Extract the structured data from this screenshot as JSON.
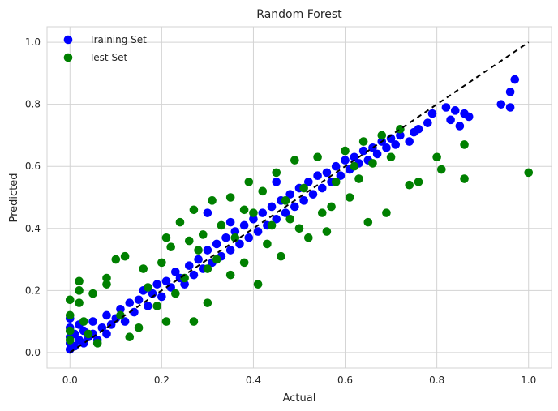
{
  "chart_data": {
    "type": "scatter",
    "title": "Random Forest",
    "xlabel": "Actual",
    "ylabel": "Predicted",
    "xlim": [
      -0.05,
      1.05
    ],
    "ylim": [
      -0.05,
      1.05
    ],
    "xticks": [
      0.0,
      0.2,
      0.4,
      0.6,
      0.8,
      1.0
    ],
    "yticks": [
      0.0,
      0.2,
      0.4,
      0.6,
      0.8,
      1.0
    ],
    "xtick_labels": [
      "0.0",
      "0.2",
      "0.4",
      "0.6",
      "0.8",
      "1.0"
    ],
    "ytick_labels": [
      "0.0",
      "0.2",
      "0.4",
      "0.6",
      "0.8",
      "1.0"
    ],
    "grid": true,
    "legend_position": "top-left",
    "reference_line": {
      "x": [
        0,
        1
      ],
      "y": [
        0,
        1
      ],
      "style": "dashed",
      "color": "#000000"
    },
    "series": [
      {
        "name": "Training Set",
        "color": "#0000ff",
        "points": [
          [
            0.0,
            0.01
          ],
          [
            0.0,
            0.03
          ],
          [
            0.0,
            0.05
          ],
          [
            0.0,
            0.08
          ],
          [
            0.0,
            0.11
          ],
          [
            0.01,
            0.02
          ],
          [
            0.01,
            0.06
          ],
          [
            0.02,
            0.04
          ],
          [
            0.02,
            0.09
          ],
          [
            0.03,
            0.03
          ],
          [
            0.03,
            0.07
          ],
          [
            0.04,
            0.05
          ],
          [
            0.05,
            0.06
          ],
          [
            0.05,
            0.1
          ],
          [
            0.06,
            0.04
          ],
          [
            0.07,
            0.08
          ],
          [
            0.08,
            0.06
          ],
          [
            0.08,
            0.12
          ],
          [
            0.09,
            0.09
          ],
          [
            0.1,
            0.11
          ],
          [
            0.11,
            0.14
          ],
          [
            0.12,
            0.1
          ],
          [
            0.13,
            0.16
          ],
          [
            0.14,
            0.13
          ],
          [
            0.15,
            0.17
          ],
          [
            0.16,
            0.2
          ],
          [
            0.17,
            0.15
          ],
          [
            0.18,
            0.19
          ],
          [
            0.19,
            0.22
          ],
          [
            0.2,
            0.18
          ],
          [
            0.21,
            0.23
          ],
          [
            0.22,
            0.21
          ],
          [
            0.23,
            0.26
          ],
          [
            0.24,
            0.24
          ],
          [
            0.25,
            0.22
          ],
          [
            0.26,
            0.28
          ],
          [
            0.27,
            0.25
          ],
          [
            0.28,
            0.3
          ],
          [
            0.29,
            0.27
          ],
          [
            0.3,
            0.33
          ],
          [
            0.31,
            0.29
          ],
          [
            0.32,
            0.35
          ],
          [
            0.33,
            0.31
          ],
          [
            0.34,
            0.37
          ],
          [
            0.35,
            0.33
          ],
          [
            0.36,
            0.39
          ],
          [
            0.37,
            0.35
          ],
          [
            0.38,
            0.41
          ],
          [
            0.39,
            0.37
          ],
          [
            0.4,
            0.43
          ],
          [
            0.41,
            0.39
          ],
          [
            0.42,
            0.45
          ],
          [
            0.43,
            0.41
          ],
          [
            0.44,
            0.47
          ],
          [
            0.45,
            0.43
          ],
          [
            0.46,
            0.49
          ],
          [
            0.47,
            0.45
          ],
          [
            0.48,
            0.51
          ],
          [
            0.49,
            0.47
          ],
          [
            0.5,
            0.53
          ],
          [
            0.51,
            0.49
          ],
          [
            0.52,
            0.55
          ],
          [
            0.53,
            0.51
          ],
          [
            0.54,
            0.57
          ],
          [
            0.55,
            0.53
          ],
          [
            0.56,
            0.58
          ],
          [
            0.57,
            0.55
          ],
          [
            0.58,
            0.6
          ],
          [
            0.59,
            0.57
          ],
          [
            0.6,
            0.62
          ],
          [
            0.61,
            0.59
          ],
          [
            0.62,
            0.63
          ],
          [
            0.63,
            0.61
          ],
          [
            0.64,
            0.65
          ],
          [
            0.65,
            0.62
          ],
          [
            0.66,
            0.66
          ],
          [
            0.67,
            0.64
          ],
          [
            0.68,
            0.68
          ],
          [
            0.69,
            0.66
          ],
          [
            0.7,
            0.69
          ],
          [
            0.71,
            0.67
          ],
          [
            0.72,
            0.7
          ],
          [
            0.74,
            0.68
          ],
          [
            0.75,
            0.71
          ],
          [
            0.76,
            0.72
          ],
          [
            0.78,
            0.74
          ],
          [
            0.79,
            0.77
          ],
          [
            0.82,
            0.79
          ],
          [
            0.84,
            0.78
          ],
          [
            0.86,
            0.77
          ],
          [
            0.83,
            0.75
          ],
          [
            0.85,
            0.73
          ],
          [
            0.87,
            0.76
          ],
          [
            0.94,
            0.8
          ],
          [
            0.96,
            0.84
          ],
          [
            0.97,
            0.88
          ],
          [
            0.96,
            0.79
          ],
          [
            0.3,
            0.45
          ],
          [
            0.35,
            0.42
          ],
          [
            0.45,
            0.55
          ]
        ]
      },
      {
        "name": "Test Set",
        "color": "#008000",
        "points": [
          [
            0.0,
            0.17
          ],
          [
            0.0,
            0.12
          ],
          [
            0.0,
            0.07
          ],
          [
            0.0,
            0.04
          ],
          [
            0.02,
            0.23
          ],
          [
            0.02,
            0.2
          ],
          [
            0.02,
            0.16
          ],
          [
            0.03,
            0.1
          ],
          [
            0.04,
            0.06
          ],
          [
            0.05,
            0.19
          ],
          [
            0.06,
            0.03
          ],
          [
            0.08,
            0.22
          ],
          [
            0.08,
            0.24
          ],
          [
            0.1,
            0.3
          ],
          [
            0.11,
            0.12
          ],
          [
            0.12,
            0.31
          ],
          [
            0.13,
            0.05
          ],
          [
            0.15,
            0.08
          ],
          [
            0.16,
            0.27
          ],
          [
            0.17,
            0.21
          ],
          [
            0.19,
            0.15
          ],
          [
            0.2,
            0.29
          ],
          [
            0.21,
            0.1
          ],
          [
            0.21,
            0.37
          ],
          [
            0.22,
            0.34
          ],
          [
            0.23,
            0.19
          ],
          [
            0.24,
            0.42
          ],
          [
            0.25,
            0.24
          ],
          [
            0.27,
            0.1
          ],
          [
            0.27,
            0.46
          ],
          [
            0.28,
            0.33
          ],
          [
            0.29,
            0.38
          ],
          [
            0.3,
            0.16
          ],
          [
            0.31,
            0.49
          ],
          [
            0.32,
            0.3
          ],
          [
            0.33,
            0.41
          ],
          [
            0.35,
            0.25
          ],
          [
            0.36,
            0.37
          ],
          [
            0.38,
            0.29
          ],
          [
            0.39,
            0.55
          ],
          [
            0.4,
            0.45
          ],
          [
            0.41,
            0.22
          ],
          [
            0.42,
            0.52
          ],
          [
            0.44,
            0.41
          ],
          [
            0.45,
            0.58
          ],
          [
            0.46,
            0.31
          ],
          [
            0.47,
            0.49
          ],
          [
            0.49,
            0.62
          ],
          [
            0.5,
            0.4
          ],
          [
            0.51,
            0.53
          ],
          [
            0.52,
            0.37
          ],
          [
            0.54,
            0.63
          ],
          [
            0.55,
            0.45
          ],
          [
            0.56,
            0.39
          ],
          [
            0.58,
            0.55
          ],
          [
            0.6,
            0.65
          ],
          [
            0.61,
            0.5
          ],
          [
            0.62,
            0.6
          ],
          [
            0.64,
            0.68
          ],
          [
            0.65,
            0.42
          ],
          [
            0.66,
            0.61
          ],
          [
            0.68,
            0.7
          ],
          [
            0.69,
            0.45
          ],
          [
            0.7,
            0.63
          ],
          [
            0.72,
            0.72
          ],
          [
            0.74,
            0.54
          ],
          [
            0.76,
            0.55
          ],
          [
            0.8,
            0.63
          ],
          [
            0.81,
            0.59
          ],
          [
            0.86,
            0.67
          ],
          [
            0.86,
            0.56
          ],
          [
            1.0,
            0.58
          ],
          [
            0.3,
            0.27
          ],
          [
            0.35,
            0.5
          ],
          [
            0.43,
            0.35
          ],
          [
            0.57,
            0.47
          ],
          [
            0.63,
            0.56
          ],
          [
            0.26,
            0.36
          ],
          [
            0.38,
            0.46
          ],
          [
            0.48,
            0.43
          ]
        ]
      }
    ]
  }
}
